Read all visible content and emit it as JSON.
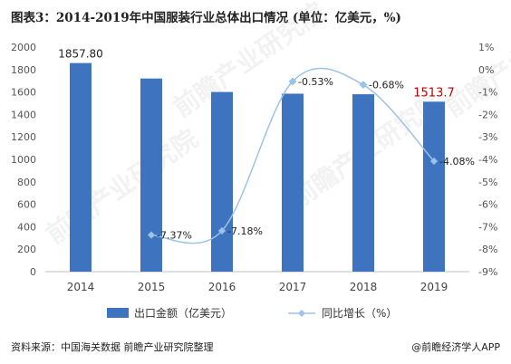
{
  "title": "图表3：2014-2019年中国服装行业总体出口情况 (单位：亿美元，%)",
  "source": "资料来源：中国海关数据 前瞻产业研究院整理",
  "credit": "@前瞻经济学人APP",
  "watermark": "前瞻产业研究院",
  "colors": {
    "bar": "#3e73c0",
    "line": "#9dc3e6",
    "highlight": "#c00000"
  },
  "chart_data": {
    "type": "bar",
    "categories": [
      "2014",
      "2015",
      "2016",
      "2017",
      "2018",
      "2019"
    ],
    "series": [
      {
        "name": "出口金额（亿美元）",
        "type": "bar",
        "axis": "left",
        "values": [
          1857.8,
          1720,
          1600,
          1585,
          1580,
          1513.7
        ]
      },
      {
        "name": "同比增长（%）",
        "type": "line",
        "axis": "right",
        "values": [
          null,
          -7.37,
          -7.18,
          -0.53,
          -0.68,
          -4.08
        ]
      }
    ],
    "data_labels": {
      "bar": [
        "1857.80",
        null,
        null,
        null,
        null,
        "1513.7"
      ],
      "line": [
        null,
        "-7.37%",
        "-7.18%",
        "-0.53%",
        "-0.68%",
        "-4.08%"
      ]
    },
    "ylim_left": [
      0,
      2000
    ],
    "yticks_left": [
      "0",
      "200",
      "400",
      "600",
      "800",
      "1000",
      "1200",
      "1400",
      "1600",
      "1800",
      "2000"
    ],
    "ylim_right": [
      -9,
      1
    ],
    "yticks_right": [
      "-9%",
      "-8%",
      "-7%",
      "-6%",
      "-5%",
      "-4%",
      "-3%",
      "-2%",
      "-1%",
      "0%",
      "1%"
    ],
    "legend": "bottom",
    "grid": false
  }
}
